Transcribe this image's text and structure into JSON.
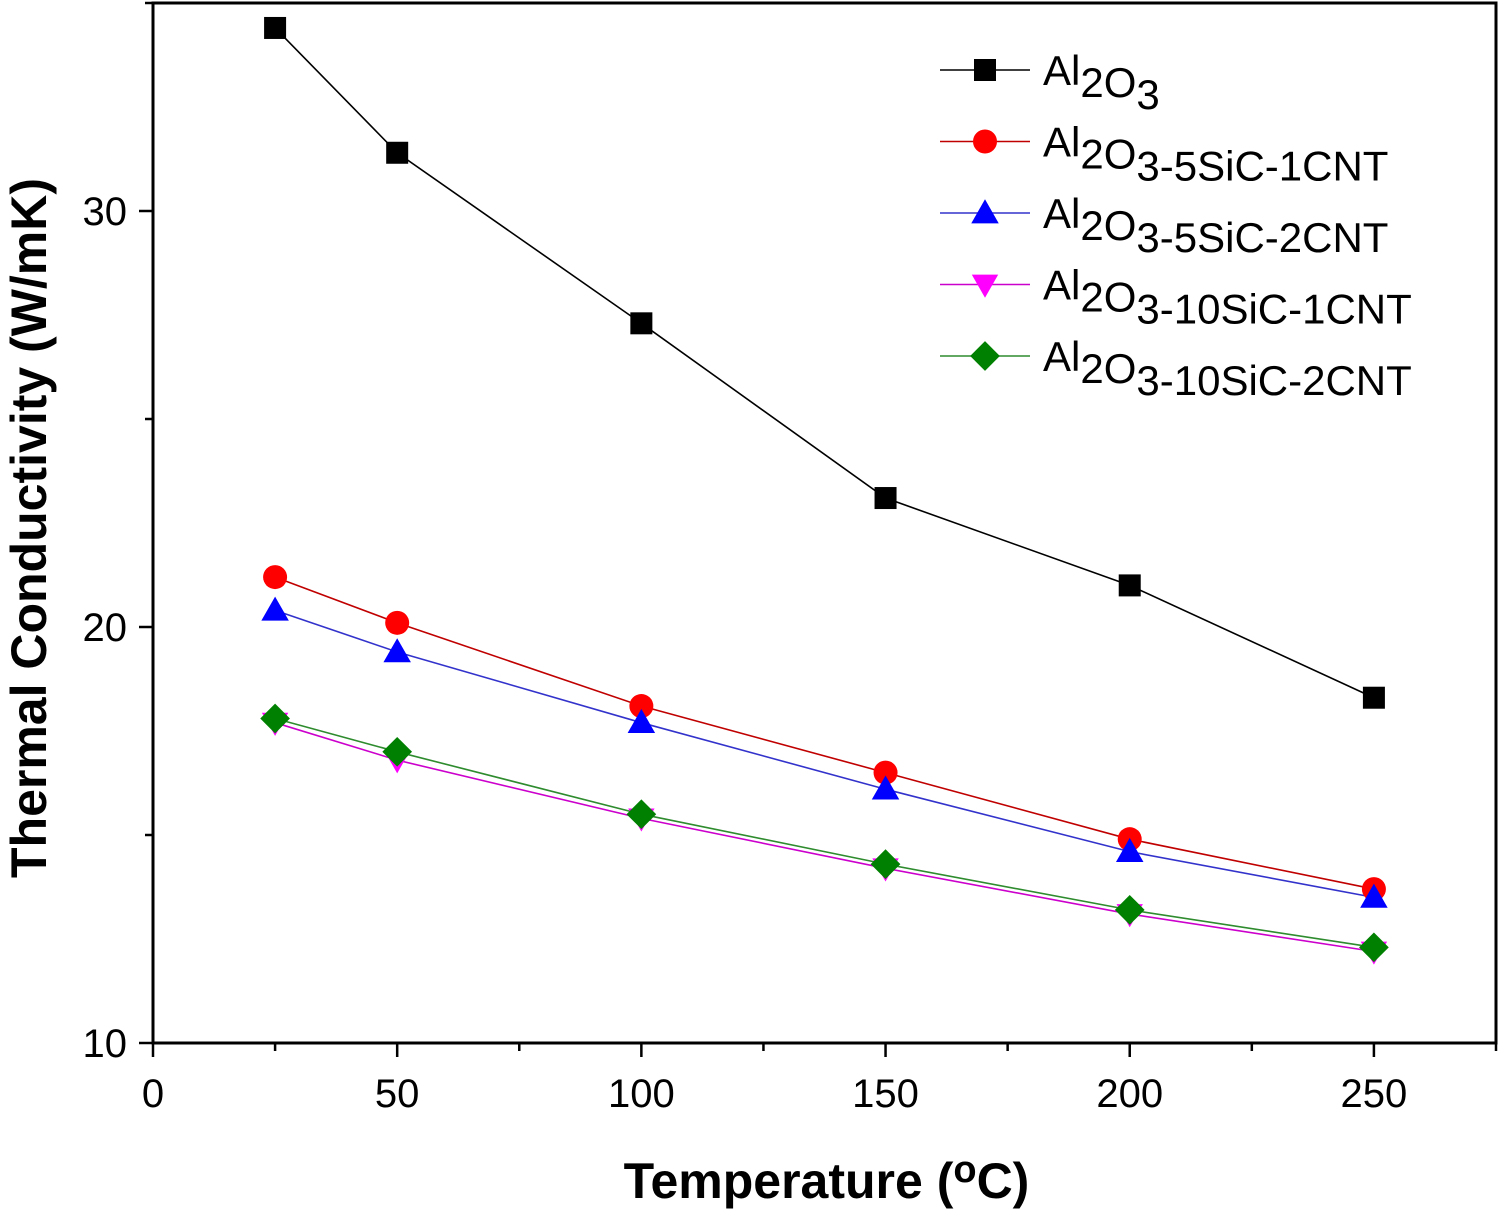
{
  "chart_data": {
    "type": "line",
    "title": "",
    "xlabel": "Temperature (oC)",
    "ylabel": "Thermal Conductivity (W/mK)",
    "xlim": [
      0,
      275
    ],
    "ylim": [
      10,
      35
    ],
    "x_ticks": [
      0,
      50,
      100,
      150,
      200,
      250
    ],
    "y_ticks": [
      10,
      20,
      30
    ],
    "grid": false,
    "legend_position": "top-right",
    "x": [
      25,
      50,
      100,
      150,
      200,
      250
    ],
    "series": [
      {
        "name": "Al2O3-",
        "name_parts": [
          [
            "Al",
            ""
          ],
          [
            "2",
            "sub"
          ],
          [
            "O",
            ""
          ],
          [
            "3",
            "sub"
          ]
        ],
        "values": [
          34.4,
          31.4,
          27.3,
          23.1,
          21.0,
          18.3
        ],
        "color": "#000000",
        "marker": "square"
      },
      {
        "name": "Al2O3-5SiC-1CNT",
        "name_parts": [
          [
            "Al",
            ""
          ],
          [
            "2",
            "sub"
          ],
          [
            "O",
            ""
          ],
          [
            "3",
            "sub"
          ],
          [
            "-5SiC-1CNT",
            ""
          ]
        ],
        "values": [
          21.2,
          20.1,
          18.1,
          16.5,
          14.9,
          13.7
        ],
        "color": "#ff0000",
        "line_color": "#c00000",
        "marker": "circle"
      },
      {
        "name": "Al2O3-5SiC-2CNT",
        "name_parts": [
          [
            "Al",
            ""
          ],
          [
            "2",
            "sub"
          ],
          [
            "O",
            ""
          ],
          [
            "3",
            "sub"
          ],
          [
            "-5SiC-2CNT",
            ""
          ]
        ],
        "values": [
          20.4,
          19.4,
          17.7,
          16.1,
          14.6,
          13.5
        ],
        "color": "#0000ff",
        "line_color": "#3333cc",
        "marker": "triangle-up"
      },
      {
        "name": "Al2O3-10SiC-1CNT",
        "name_parts": [
          [
            "Al",
            ""
          ],
          [
            "2",
            "sub"
          ],
          [
            "O",
            ""
          ],
          [
            "3",
            "sub"
          ],
          [
            "-10SiC-1CNT",
            ""
          ]
        ],
        "values": [
          17.7,
          16.8,
          15.4,
          14.2,
          13.1,
          12.2
        ],
        "color": "#ff00ff",
        "line_color": "#cc00cc",
        "marker": "triangle-down"
      },
      {
        "name": "Al2O3-10SiC-2CNT",
        "name_parts": [
          [
            "Al",
            ""
          ],
          [
            "2",
            "sub"
          ],
          [
            "O",
            ""
          ],
          [
            "3",
            "sub"
          ],
          [
            "-10SiC-2CNT",
            ""
          ]
        ],
        "values": [
          17.8,
          17.0,
          15.5,
          14.3,
          13.2,
          12.3
        ],
        "color": "#008000",
        "line_color": "#2e8b2e",
        "marker": "diamond"
      }
    ]
  }
}
